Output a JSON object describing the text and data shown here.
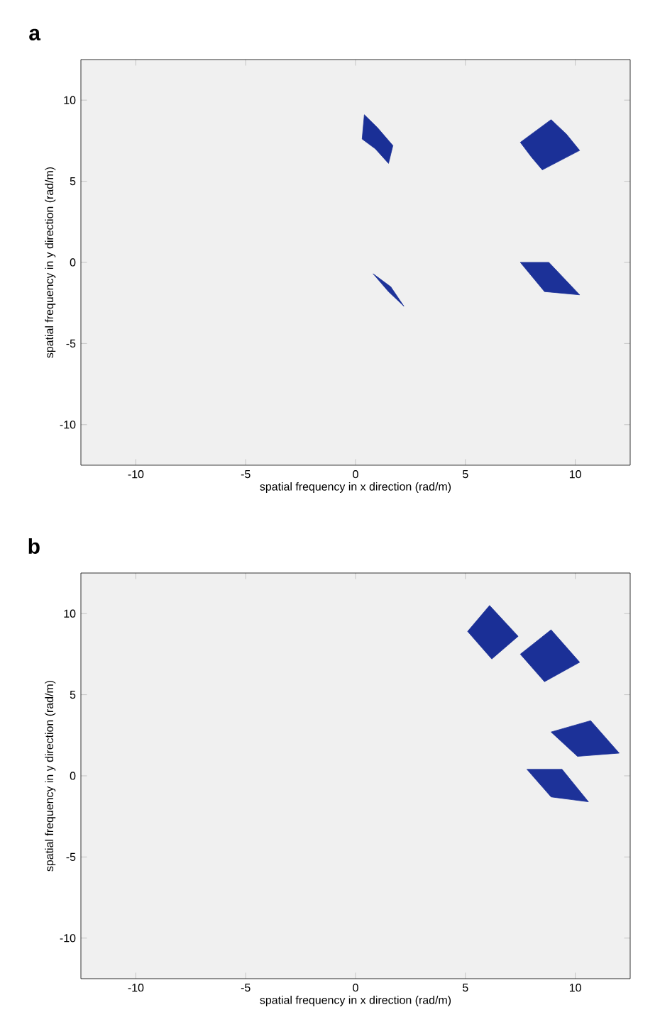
{
  "chart_data": [
    {
      "type": "area",
      "title": "a",
      "xlabel": "spatial frequency in x direction (rad/m)",
      "ylabel": "spatial frequency in y direction (rad/m)",
      "xlim": [
        -12.5,
        12.5
      ],
      "ylim": [
        -12.5,
        12.5
      ],
      "xticks": [
        -10,
        -5,
        0,
        5,
        10
      ],
      "yticks": [
        -10,
        -5,
        0,
        5,
        10
      ],
      "grid": false,
      "series": [
        {
          "color": "#1a2f96",
          "x": [
            0.4,
            1.0,
            1.7,
            1.5,
            0.9,
            0.3
          ],
          "values": [
            9.1,
            8.3,
            7.2,
            6.1,
            7.0,
            7.6
          ]
        },
        {
          "color": "#1b3097",
          "x": [
            7.5,
            8.9,
            9.6,
            10.2,
            8.5,
            8.0
          ],
          "values": [
            7.4,
            8.8,
            7.9,
            6.9,
            5.7,
            6.5
          ]
        },
        {
          "color": "#1c3198",
          "x": [
            7.5,
            8.8,
            10.2,
            8.6
          ],
          "values": [
            0,
            0,
            -2.0,
            -1.8
          ]
        },
        {
          "color": "#1d3299",
          "x": [
            0.8,
            1.6,
            2.2,
            1.5
          ],
          "values": [
            -0.7,
            -1.5,
            -2.7,
            -1.8
          ]
        }
      ]
    },
    {
      "type": "area",
      "title": "b",
      "xlabel": "spatial frequency in x direction (rad/m)",
      "ylabel": "spatial frequency in y direction (rad/m)",
      "xlim": [
        -12.5,
        12.5
      ],
      "ylim": [
        -12.5,
        12.5
      ],
      "xticks": [
        -10,
        -5,
        0,
        5,
        10
      ],
      "yticks": [
        -10,
        -5,
        0,
        5,
        10
      ],
      "grid": false,
      "series": [
        {
          "color": "#1a2f96",
          "x": [
            6.1,
            7.4,
            6.2,
            5.1
          ],
          "values": [
            10.5,
            8.6,
            7.2,
            8.9
          ]
        },
        {
          "color": "#1b3097",
          "x": [
            8.9,
            10.2,
            8.6,
            7.5
          ],
          "values": [
            9.0,
            7.0,
            5.8,
            7.5
          ]
        },
        {
          "color": "#1c3198",
          "x": [
            8.9,
            10.7,
            12.0,
            10.1
          ],
          "values": [
            2.7,
            3.4,
            1.4,
            1.2
          ]
        },
        {
          "color": "#1d3299",
          "x": [
            7.8,
            9.4,
            10.6,
            8.9
          ],
          "values": [
            0.4,
            0.4,
            -1.6,
            -1.3
          ]
        }
      ]
    }
  ]
}
